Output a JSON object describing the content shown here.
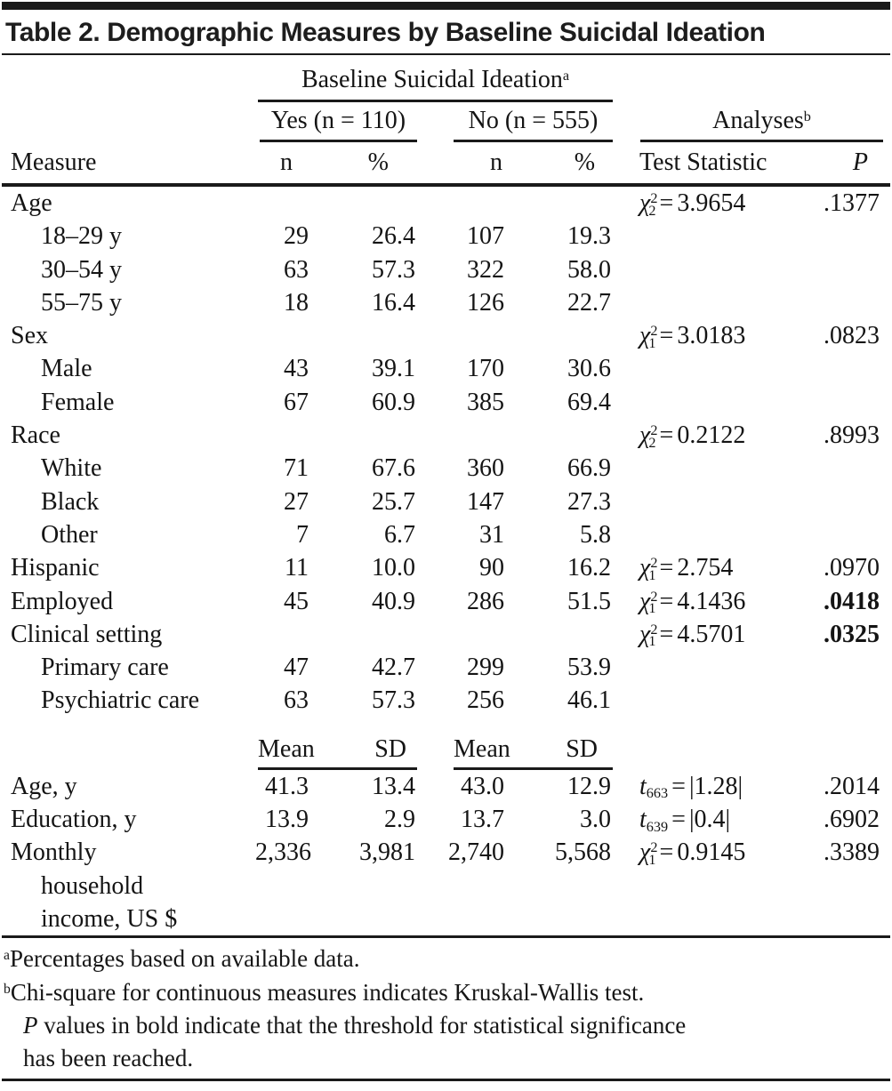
{
  "title": "Table 2. Demographic Measures by Baseline Suicidal Ideation",
  "header": {
    "group": "Baseline Suicidal Ideation",
    "group_sup": "a",
    "yes": "Yes (n = 110)",
    "no": "No (n = 555)",
    "analyses": "Analyses",
    "analyses_sup": "b",
    "measure": "Measure",
    "n1": "n",
    "pct1": "%",
    "n2": "n",
    "pct2": "%",
    "test_statistic": "Test Statistic",
    "p": "P"
  },
  "table": {
    "subheader": {
      "mean": "Mean",
      "sd": "SD"
    },
    "rows": [
      {
        "label": "Age",
        "stat": {
          "sym": "χ",
          "sup": "2",
          "sub": "2",
          "value": "3.9654"
        },
        "p": ".1377"
      },
      {
        "label": "18–29 y",
        "indent": true,
        "values": [
          "29",
          "26.4",
          "107",
          "19.3"
        ]
      },
      {
        "label": "30–54 y",
        "indent": true,
        "values": [
          "63",
          "57.3",
          "322",
          "58.0"
        ]
      },
      {
        "label": "55–75 y",
        "indent": true,
        "values": [
          "18",
          "16.4",
          "126",
          "22.7"
        ]
      },
      {
        "label": "Sex",
        "stat": {
          "sym": "χ",
          "sup": "2",
          "sub": "1",
          "value": "3.0183"
        },
        "p": ".0823"
      },
      {
        "label": "Male",
        "indent": true,
        "values": [
          "43",
          "39.1",
          "170",
          "30.6"
        ]
      },
      {
        "label": "Female",
        "indent": true,
        "values": [
          "67",
          "60.9",
          "385",
          "69.4"
        ]
      },
      {
        "label": "Race",
        "stat": {
          "sym": "χ",
          "sup": "2",
          "sub": "2",
          "value": "0.2122"
        },
        "p": ".8993"
      },
      {
        "label": "White",
        "indent": true,
        "values": [
          "71",
          "67.6",
          "360",
          "66.9"
        ]
      },
      {
        "label": "Black",
        "indent": true,
        "values": [
          "27",
          "25.7",
          "147",
          "27.3"
        ]
      },
      {
        "label": "Other",
        "indent": true,
        "values": [
          "7",
          "6.7",
          "31",
          "5.8"
        ]
      },
      {
        "label": "Hispanic",
        "values": [
          "11",
          "10.0",
          "90",
          "16.2"
        ],
        "stat": {
          "sym": "χ",
          "sup": "2",
          "sub": "1",
          "value": "2.754"
        },
        "p": ".0970"
      },
      {
        "label": "Employed",
        "values": [
          "45",
          "40.9",
          "286",
          "51.5"
        ],
        "stat": {
          "sym": "χ",
          "sup": "2",
          "sub": "1",
          "value": "4.1436"
        },
        "p": ".0418",
        "p_bold": true
      },
      {
        "label": "Clinical setting",
        "stat": {
          "sym": "χ",
          "sup": "2",
          "sub": "1",
          "value": "4.5701"
        },
        "p": ".0325",
        "p_bold": true
      },
      {
        "label": "Primary care",
        "indent": true,
        "values": [
          "47",
          "42.7",
          "299",
          "53.9"
        ]
      },
      {
        "label": "Psychiatric care",
        "indent": true,
        "values": [
          "63",
          "57.3",
          "256",
          "46.1"
        ]
      },
      {
        "type": "spacer"
      },
      {
        "type": "subheader"
      },
      {
        "label": "Age, y",
        "values": [
          "41.3",
          "13.4",
          "43.0",
          "12.9"
        ],
        "stat": {
          "sym": "t",
          "sub": "663",
          "value": "|1.28|"
        },
        "p": ".2014"
      },
      {
        "label": "Education, y",
        "values": [
          "13.9",
          "2.9",
          "13.7",
          "3.0"
        ],
        "stat": {
          "sym": "t",
          "sub": "639",
          "value": "|0.4|"
        },
        "p": ".6902"
      },
      {
        "label": "Monthly household income, US $",
        "label_lines": [
          "Monthly",
          "household",
          "income, US $"
        ],
        "values": [
          "2,336",
          "3,981",
          "2,740",
          "5,568"
        ],
        "stat": {
          "sym": "χ",
          "sup": "2",
          "sub": "1",
          "value": "0.9145"
        },
        "p": ".3389"
      }
    ]
  },
  "footnotes": {
    "a": {
      "sup": "a",
      "text": "Percentages based on available data."
    },
    "b": {
      "sup": "b",
      "text": "Chi-square for continuous measures indicates Kruskal-Wallis test.",
      "line2": "P values in bold indicate that the threshold for statistical significance",
      "line3": "has been reached."
    }
  },
  "colors": {
    "text": "#141414",
    "rule": "#1a1a1a",
    "background": "#ffffff"
  }
}
